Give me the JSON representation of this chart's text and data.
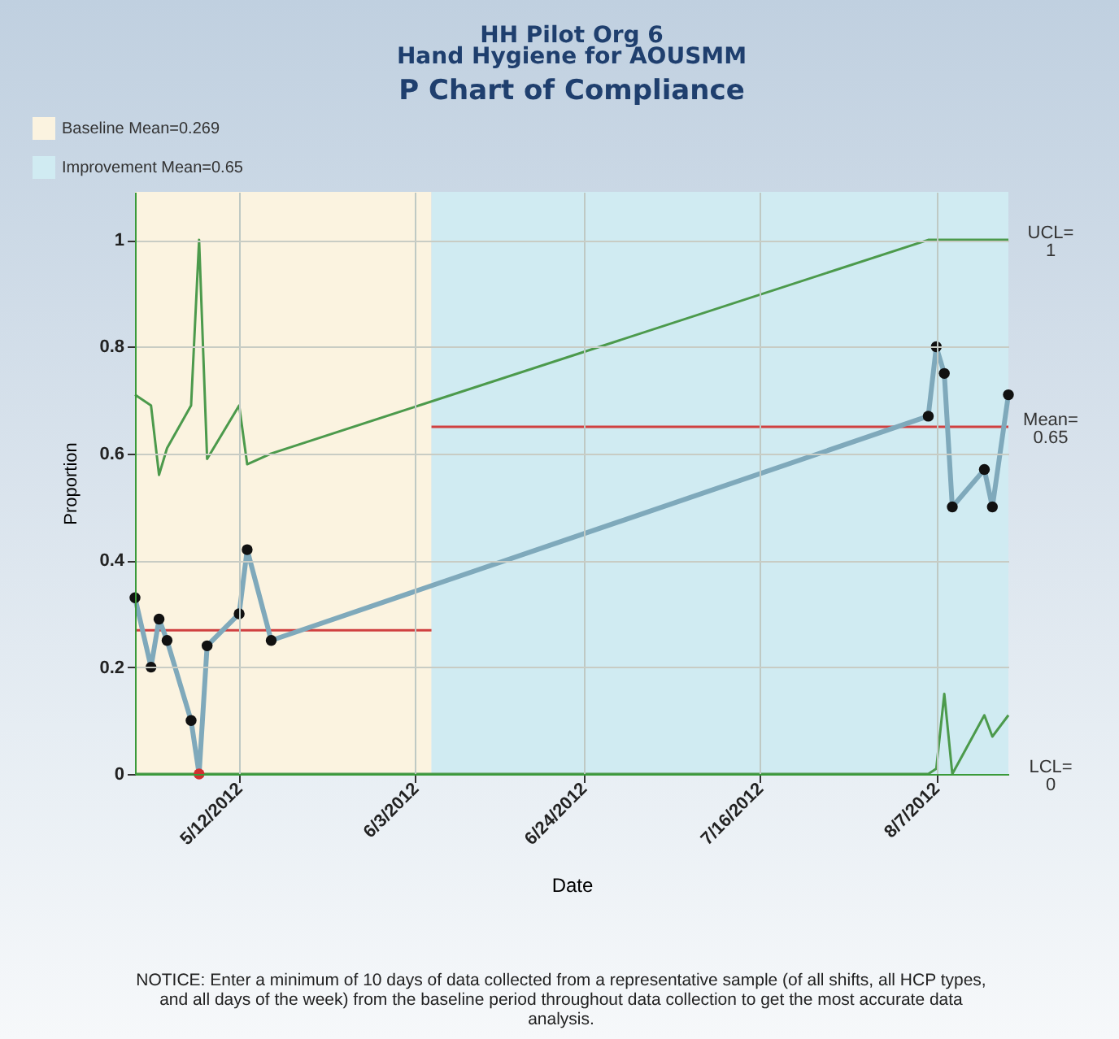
{
  "chart_data": {
    "type": "line",
    "title": "HH Pilot Org 6\nHand Hygiene for AOUSMM",
    "subtitle": "P Chart of Compliance",
    "xlabel": "Date",
    "ylabel": "Proportion",
    "xlim": [
      "2012-04-29",
      "2012-08-16"
    ],
    "xticks": [
      {
        "value": "2012-05-12",
        "label": "5/12/2012"
      },
      {
        "value": "2012-06-03",
        "label": "6/3/2012"
      },
      {
        "value": "2012-06-24",
        "label": "6/24/2012"
      },
      {
        "value": "2012-07-16",
        "label": "7/16/2012"
      },
      {
        "value": "2012-08-07",
        "label": "8/7/2012"
      }
    ],
    "ylim": [
      0,
      1.09
    ],
    "yticks": [
      0,
      0.2,
      0.4,
      0.6,
      0.8,
      1
    ],
    "grid": true,
    "legend": "top left",
    "series": [
      {
        "color": "#7fa9bb",
        "marker": "circle",
        "x": [
          "2012-04-29",
          "2012-05-01",
          "2012-05-02",
          "2012-05-03",
          "2012-05-06",
          "2012-05-07",
          "2012-05-08",
          "2012-05-12",
          "2012-05-13",
          "2012-05-16",
          "2012-08-06",
          "2012-08-07",
          "2012-08-08",
          "2012-08-09",
          "2012-08-13",
          "2012-08-14",
          "2012-08-16"
        ],
        "values": [
          0.33,
          0.2,
          0.29,
          0.25,
          0.1,
          0,
          0.24,
          0.3,
          0.42,
          0.25,
          0.67,
          0.8,
          0.75,
          0.5,
          0.57,
          0.5,
          0.71
        ],
        "colors": [
          "#111111",
          "#111111",
          "#111111",
          "#111111",
          "#111111",
          "#d03030",
          "#111111",
          "#111111",
          "#111111",
          "#111111",
          "#111111",
          "#111111",
          "#111111",
          "#111111",
          "#111111",
          "#111111",
          "#111111"
        ]
      },
      {
        "color": "#4c9a4c",
        "marker": "none",
        "x": [
          "2012-04-29",
          "2012-05-01",
          "2012-05-02",
          "2012-05-03",
          "2012-05-06",
          "2012-05-07",
          "2012-05-08",
          "2012-05-12",
          "2012-05-13",
          "2012-05-16",
          "2012-08-06",
          "2012-08-07",
          "2012-08-08",
          "2012-08-09",
          "2012-08-13",
          "2012-08-14",
          "2012-08-16"
        ],
        "values": [
          0.71,
          0.69,
          0.56,
          0.61,
          0.69,
          1,
          0.59,
          0.69,
          0.58,
          0.6,
          1,
          1,
          1,
          1,
          1,
          1,
          1
        ]
      },
      {
        "color": "#4c9a4c",
        "marker": "none",
        "x": [
          "2012-04-29",
          "2012-05-01",
          "2012-05-02",
          "2012-05-03",
          "2012-05-06",
          "2012-05-07",
          "2012-05-08",
          "2012-05-12",
          "2012-05-13",
          "2012-05-16",
          "2012-08-06",
          "2012-08-07",
          "2012-08-08",
          "2012-08-09",
          "2012-08-13",
          "2012-08-14",
          "2012-08-16"
        ],
        "values": [
          0,
          0,
          0,
          0,
          0,
          0,
          0,
          0,
          0,
          0,
          0,
          0.01,
          0.15,
          0,
          0.11,
          0.07,
          0.11
        ]
      },
      {
        "color": "#d04040",
        "marker": "none",
        "x": [
          "2012-04-29",
          "2012-06-05"
        ],
        "values": [
          0.269,
          0.269
        ]
      },
      {
        "color": "#d04040",
        "marker": "none",
        "x": [
          "2012-06-05",
          "2012-08-16"
        ],
        "values": [
          0.65,
          0.65
        ]
      }
    ],
    "bands": [
      {
        "axis": "x",
        "from": "2012-04-29",
        "to": "2012-06-05",
        "label": "Baseline Mean=0.269",
        "color": "#fbf3e0"
      },
      {
        "axis": "x",
        "from": "2012-06-05",
        "to": "2012-08-16",
        "label": "Improvement Mean=0.65",
        "color": "#d0ebf2"
      }
    ],
    "annotations": [
      {
        "text": "UCL=\n1",
        "x": "2012-08-16",
        "y": 1
      },
      {
        "text": "Mean=\n0.65",
        "x": "2012-08-16",
        "y": 0.65
      },
      {
        "text": "LCL=\n0",
        "x": "2012-08-16",
        "y": 0
      },
      "NOTICE:  Enter a minimum of 10 days of data collected from a representative sample (of all shifts, all HCP types, and all days of the week) from the baseline period throughout data collection to get the most accurate data analysis."
    ]
  }
}
